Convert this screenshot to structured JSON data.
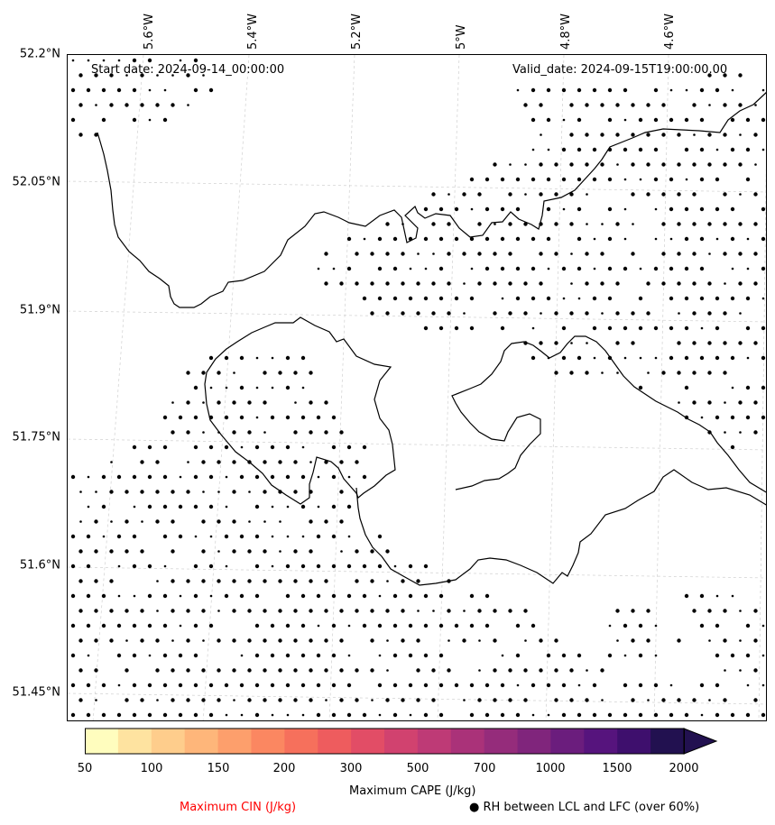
{
  "header": {
    "start_date": "Start date: 2024-09-14_00:00:00",
    "valid_date": "Valid_date: 2024-09-15T19:00:00.00"
  },
  "axes": {
    "latitude_labels": [
      "52.2°N",
      "52.05°N",
      "51.9°N",
      "51.75°N",
      "51.6°N",
      "51.45°N"
    ],
    "longitude_labels": [
      "5.6°W",
      "5.4°W",
      "5.2°W",
      "5°W",
      "4.8°W",
      "4.6°W"
    ]
  },
  "colorbar": {
    "title": "Maximum CAPE (J/kg)",
    "tick_labels": [
      "50",
      "100",
      "150",
      "200",
      "300",
      "500",
      "700",
      "1000",
      "1500",
      "2000"
    ],
    "colors": [
      "#fffdbe",
      "#fee3a0",
      "#fecd8c",
      "#feb67a",
      "#fd9f6c",
      "#fb8761",
      "#f6705c",
      "#ee5c5e",
      "#e24d66",
      "#d1426f",
      "#be3a76",
      "#aa3279",
      "#952c7b",
      "#80257c",
      "#6b1d7d",
      "#56147d",
      "#3e0f6d",
      "#221150"
    ]
  },
  "legend": {
    "cin_label": "Maximum CIN (J/kg)",
    "cin_color": "#ff0000",
    "rh_label": "● RH between LCL and LFC (over 60%)"
  },
  "map": {
    "coastline_color": "#000000",
    "gridline_color": "#cccccc",
    "dot_color": "#000000"
  }
}
